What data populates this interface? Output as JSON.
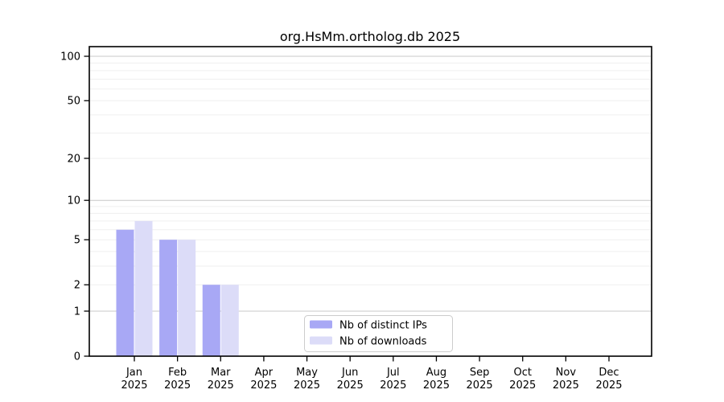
{
  "title": "org.HsMm.ortholog.db 2025",
  "chart_data": {
    "type": "bar",
    "title": "org.HsMm.ortholog.db 2025",
    "scale": "log1p",
    "grid": true,
    "legend_position": "lower center",
    "categories": [
      "Jan",
      "Feb",
      "Mar",
      "Apr",
      "May",
      "Jun",
      "Jul",
      "Aug",
      "Sep",
      "Oct",
      "Nov",
      "Dec"
    ],
    "year": "2025",
    "series": [
      {
        "name": "Nb of distinct IPs",
        "color": "#a8a8f5",
        "values": [
          6,
          5,
          2,
          0,
          0,
          0,
          0,
          0,
          0,
          0,
          0,
          0
        ]
      },
      {
        "name": "Nb of downloads",
        "color": "#dcdcf8",
        "values": [
          7,
          5,
          2,
          0,
          0,
          0,
          0,
          0,
          0,
          0,
          0,
          0
        ]
      }
    ],
    "yticks": [
      0,
      1,
      2,
      5,
      10,
      20,
      50,
      100
    ],
    "minor_gridlines": [
      3,
      4,
      6,
      7,
      8,
      9,
      30,
      40,
      60,
      70,
      80,
      90
    ],
    "decade_gridlines": [
      1,
      10,
      100
    ],
    "ylim": [
      0,
      117
    ],
    "xlabel": "",
    "ylabel": ""
  }
}
